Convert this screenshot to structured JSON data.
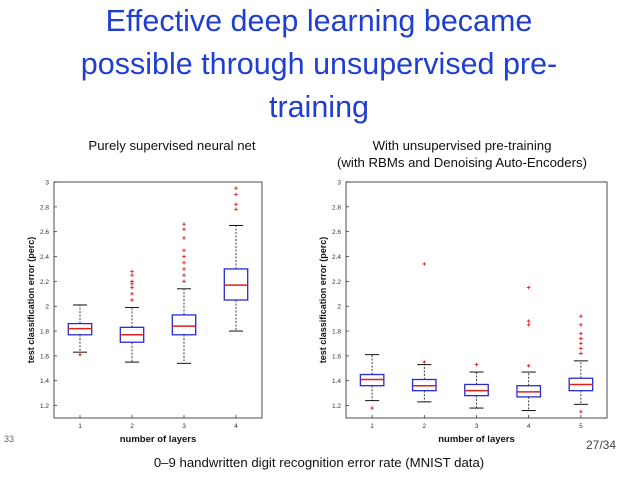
{
  "slide": {
    "title_line1": "Effective deep learning became",
    "title_line2": "possible through unsupervised pre-",
    "title_line3": "training",
    "left_subtitle": "Purely supervised neural net",
    "right_subtitle_line1": "With unsupervised pre-training",
    "right_subtitle_line2": "(with RBMs and Denoising Auto-Encoders)",
    "caption": "0–9 handwritten digit recognition error rate (MNIST data)",
    "page_number": "27/34",
    "slide_corner": "33"
  },
  "colors": {
    "title": "#1f3fd1",
    "box": "#2a2ad0",
    "median": "#e02020",
    "whisker": "#111111",
    "outlier": "#e02020"
  },
  "chart_data": [
    {
      "type": "box",
      "title": "Purely supervised neural net",
      "xlabel": "number of layers",
      "ylabel": "test classification error (perc)",
      "ylim": [
        1.1,
        3.0
      ],
      "yticks": [
        1.2,
        1.4,
        1.6,
        1.8,
        2,
        2.2,
        2.4,
        2.6,
        2.8,
        3
      ],
      "categories": [
        "1",
        "2",
        "3",
        "4"
      ],
      "boxes": [
        {
          "min": 1.63,
          "q1": 1.77,
          "median": 1.82,
          "q3": 1.86,
          "max": 2.01,
          "outliers": [
            1.61
          ]
        },
        {
          "min": 1.55,
          "q1": 1.71,
          "median": 1.77,
          "q3": 1.83,
          "max": 1.99,
          "outliers": [
            2.05,
            2.1,
            2.15,
            2.18,
            2.2,
            2.25,
            2.28
          ]
        },
        {
          "min": 1.54,
          "q1": 1.77,
          "median": 1.84,
          "q3": 1.93,
          "max": 2.14,
          "outliers": [
            2.2,
            2.25,
            2.3,
            2.35,
            2.4,
            2.45,
            2.55,
            2.62,
            2.66
          ]
        },
        {
          "min": 1.8,
          "q1": 2.05,
          "median": 2.17,
          "q3": 2.3,
          "max": 2.65,
          "outliers": [
            2.78,
            2.82,
            2.9,
            2.95
          ]
        }
      ]
    },
    {
      "type": "box",
      "title": "With unsupervised pre-training",
      "xlabel": "number of layers",
      "ylabel": "test classification error (perc)",
      "ylim": [
        1.1,
        3.0
      ],
      "yticks": [
        1.2,
        1.4,
        1.6,
        1.8,
        2,
        2.2,
        2.4,
        2.6,
        2.8,
        3
      ],
      "categories": [
        "1",
        "2",
        "3",
        "4",
        "5"
      ],
      "boxes": [
        {
          "min": 1.24,
          "q1": 1.36,
          "median": 1.41,
          "q3": 1.45,
          "max": 1.61,
          "outliers": [
            1.18
          ]
        },
        {
          "min": 1.23,
          "q1": 1.32,
          "median": 1.36,
          "q3": 1.41,
          "max": 1.53,
          "outliers": [
            2.34,
            1.55
          ]
        },
        {
          "min": 1.18,
          "q1": 1.28,
          "median": 1.32,
          "q3": 1.37,
          "max": 1.47,
          "outliers": [
            1.53
          ]
        },
        {
          "min": 1.16,
          "q1": 1.27,
          "median": 1.31,
          "q3": 1.36,
          "max": 1.47,
          "outliers": [
            2.15,
            1.88,
            1.85,
            1.52
          ]
        },
        {
          "min": 1.21,
          "q1": 1.32,
          "median": 1.37,
          "q3": 1.42,
          "max": 1.56,
          "outliers": [
            1.62,
            1.66,
            1.7,
            1.74,
            1.78,
            1.85,
            1.92,
            1.15
          ]
        }
      ]
    }
  ]
}
